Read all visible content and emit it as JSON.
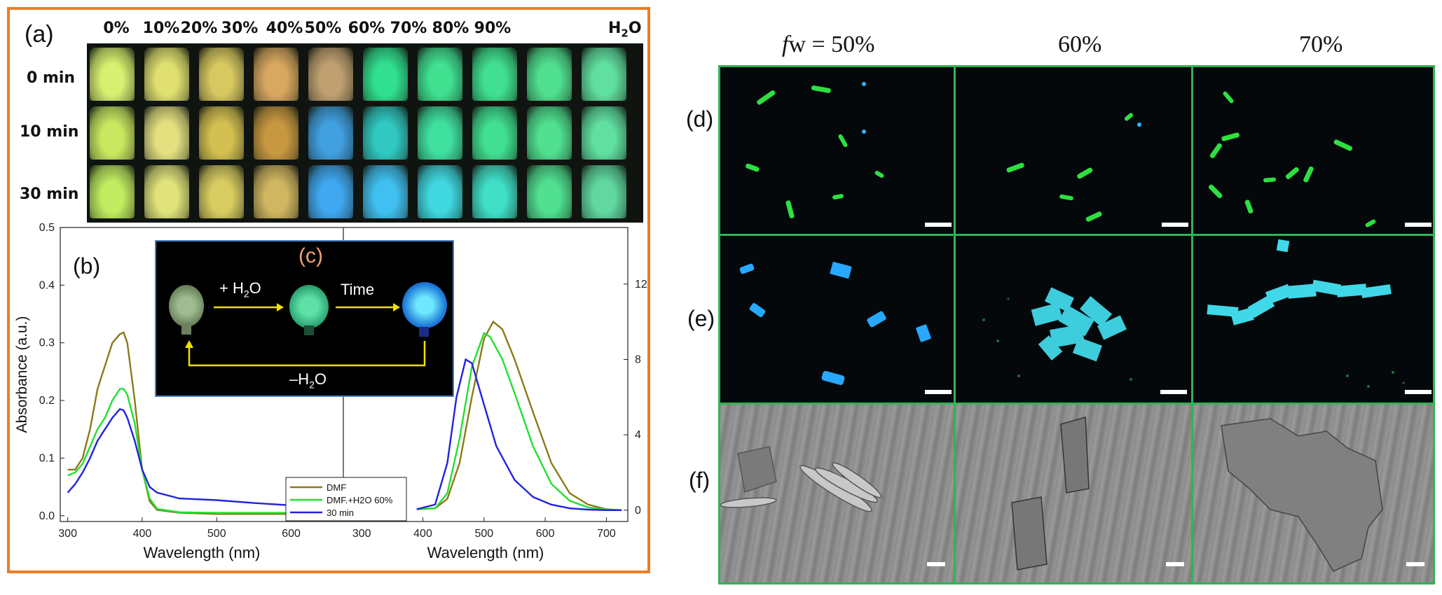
{
  "panel_a": {
    "label": "(a)",
    "columns": [
      "0%",
      "10%",
      "20%",
      "30%",
      "40%",
      "50%",
      "60%",
      "70%",
      "80%",
      "90%"
    ],
    "water_base": "H",
    "water_sub": "2",
    "water_tail": "O",
    "rows": [
      "0 min",
      "10 min",
      "30 min"
    ]
  },
  "panel_b": {
    "label": "(b)"
  },
  "panel_c": {
    "label": "(c)",
    "add_water_prefix": "+ H",
    "add_water_sub": "2",
    "add_water_tail": "O",
    "time_label": "Time",
    "remove_water_prefix": "–H",
    "remove_water_sub": "2",
    "remove_water_tail": "O"
  },
  "panels_def": {
    "col_titles": {
      "fw_italic": "f",
      "fw_rest": "w = 50%",
      "col2": "60%",
      "col3": "70%"
    },
    "row_labels": [
      "(d)",
      "(e)",
      "(f)"
    ]
  },
  "chart_data": {
    "type": "line",
    "left_axis": {
      "ylabel": "Absorbance (a.u.)",
      "xlabel": "Wavelength (nm)",
      "xlim": [
        290,
        670
      ],
      "ylim": [
        -0.01,
        0.5
      ],
      "xticks": [
        "300",
        "400",
        "500",
        "600"
      ],
      "yticks": [
        "0.0",
        "0.1",
        "0.2",
        "0.3",
        "0.4",
        "0.5"
      ]
    },
    "right_axis": {
      "xlabel": "Wavelength (nm)",
      "xlim": [
        270,
        735
      ],
      "ylim": [
        -0.6,
        15
      ],
      "xticks": [
        "300",
        "400",
        "500",
        "600",
        "700"
      ],
      "yticks": [
        "0",
        "4",
        "8",
        "12"
      ]
    },
    "legend": [
      "DMF",
      "DMF.+H2O 60%",
      "30 min"
    ],
    "series": [
      {
        "name": "DMF",
        "color": "#8b7a1a",
        "absorption": [
          [
            300,
            0.08
          ],
          [
            310,
            0.08
          ],
          [
            320,
            0.1
          ],
          [
            330,
            0.15
          ],
          [
            340,
            0.22
          ],
          [
            345,
            0.24
          ],
          [
            350,
            0.26
          ],
          [
            360,
            0.3
          ],
          [
            370,
            0.315
          ],
          [
            375,
            0.318
          ],
          [
            380,
            0.3
          ],
          [
            390,
            0.2
          ],
          [
            400,
            0.08
          ],
          [
            410,
            0.025
          ],
          [
            420,
            0.01
          ],
          [
            450,
            0.005
          ],
          [
            500,
            0.003
          ],
          [
            600,
            0.003
          ],
          [
            660,
            0.003
          ]
        ],
        "emission": [
          [
            390,
            0.05
          ],
          [
            420,
            0.1
          ],
          [
            440,
            0.6
          ],
          [
            460,
            2.5
          ],
          [
            480,
            6.0
          ],
          [
            500,
            9.1
          ],
          [
            515,
            10.0
          ],
          [
            530,
            9.6
          ],
          [
            550,
            8.0
          ],
          [
            580,
            5.2
          ],
          [
            610,
            2.5
          ],
          [
            640,
            0.9
          ],
          [
            670,
            0.3
          ],
          [
            700,
            0.05
          ],
          [
            725,
            0.0
          ]
        ]
      },
      {
        "name": "DMF.+H2O 60%",
        "color": "#22e030",
        "absorption": [
          [
            300,
            0.07
          ],
          [
            310,
            0.075
          ],
          [
            320,
            0.09
          ],
          [
            330,
            0.12
          ],
          [
            340,
            0.15
          ],
          [
            350,
            0.17
          ],
          [
            360,
            0.2
          ],
          [
            370,
            0.22
          ],
          [
            375,
            0.22
          ],
          [
            380,
            0.21
          ],
          [
            390,
            0.16
          ],
          [
            400,
            0.08
          ],
          [
            410,
            0.03
          ],
          [
            420,
            0.012
          ],
          [
            450,
            0.006
          ],
          [
            500,
            0.005
          ],
          [
            600,
            0.005
          ],
          [
            660,
            0.005
          ]
        ],
        "emission": [
          [
            390,
            0.05
          ],
          [
            420,
            0.1
          ],
          [
            440,
            0.9
          ],
          [
            460,
            3.8
          ],
          [
            480,
            7.6
          ],
          [
            500,
            9.4
          ],
          [
            510,
            9.2
          ],
          [
            530,
            8.0
          ],
          [
            550,
            6.2
          ],
          [
            580,
            3.4
          ],
          [
            610,
            1.4
          ],
          [
            640,
            0.5
          ],
          [
            670,
            0.15
          ],
          [
            700,
            0.03
          ],
          [
            725,
            0.0
          ]
        ]
      },
      {
        "name": "30 min",
        "color": "#2222dd",
        "absorption": [
          [
            300,
            0.04
          ],
          [
            310,
            0.055
          ],
          [
            320,
            0.075
          ],
          [
            330,
            0.1
          ],
          [
            340,
            0.13
          ],
          [
            350,
            0.15
          ],
          [
            360,
            0.17
          ],
          [
            370,
            0.185
          ],
          [
            375,
            0.183
          ],
          [
            380,
            0.17
          ],
          [
            390,
            0.13
          ],
          [
            400,
            0.08
          ],
          [
            410,
            0.05
          ],
          [
            420,
            0.04
          ],
          [
            450,
            0.03
          ],
          [
            500,
            0.027
          ],
          [
            550,
            0.022
          ],
          [
            600,
            0.018
          ],
          [
            640,
            0.016
          ],
          [
            660,
            0.015
          ]
        ],
        "emission": [
          [
            390,
            0.05
          ],
          [
            420,
            0.3
          ],
          [
            440,
            2.5
          ],
          [
            455,
            6.0
          ],
          [
            470,
            8.0
          ],
          [
            480,
            7.8
          ],
          [
            500,
            5.6
          ],
          [
            520,
            3.4
          ],
          [
            550,
            1.6
          ],
          [
            580,
            0.7
          ],
          [
            610,
            0.3
          ],
          [
            640,
            0.1
          ],
          [
            670,
            0.03
          ],
          [
            700,
            0.0
          ],
          [
            725,
            0.0
          ]
        ]
      }
    ]
  }
}
